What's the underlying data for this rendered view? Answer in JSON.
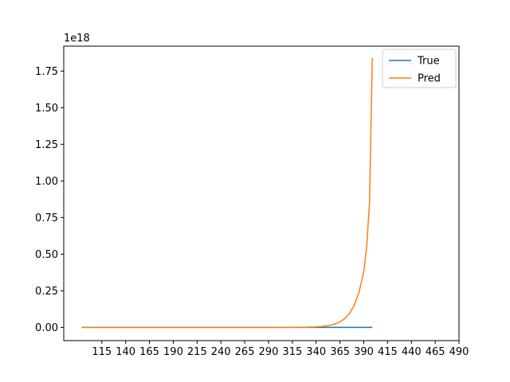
{
  "chart_data": {
    "type": "line",
    "title": "",
    "xlabel": "",
    "ylabel": "",
    "offset_text": "1e18",
    "xlim": [
      75,
      490
    ],
    "ylim": [
      -0.09,
      1.92
    ],
    "x_ticks": [
      115,
      140,
      165,
      190,
      215,
      240,
      265,
      290,
      315,
      340,
      365,
      390,
      415,
      440,
      465,
      490
    ],
    "y_ticks": [
      0.0,
      0.25,
      0.5,
      0.75,
      1.0,
      1.25,
      1.5,
      1.75
    ],
    "y_tick_labels": [
      "0.00",
      "0.25",
      "0.50",
      "0.75",
      "1.00",
      "1.25",
      "1.50",
      "1.75"
    ],
    "legend": {
      "position": "top-right",
      "entries": [
        "True",
        "Pred"
      ]
    },
    "grid": false,
    "series": [
      {
        "name": "True",
        "color": "#1f77b4",
        "x": [
          94,
          150,
          200,
          250,
          300,
          350,
          399
        ],
        "y": [
          0,
          0,
          0,
          0,
          0,
          0,
          0
        ]
      },
      {
        "name": "Pred",
        "color": "#ff7f0e",
        "x": [
          94,
          200,
          300,
          320,
          330,
          340,
          345,
          350,
          355,
          360,
          365,
          370,
          375,
          380,
          385,
          390,
          393,
          396,
          399
        ],
        "y": [
          0,
          0,
          0,
          0.001,
          0.002,
          0.004,
          0.006,
          0.01,
          0.015,
          0.024,
          0.038,
          0.06,
          0.095,
          0.15,
          0.24,
          0.38,
          0.55,
          0.85,
          1.84
        ]
      }
    ]
  }
}
